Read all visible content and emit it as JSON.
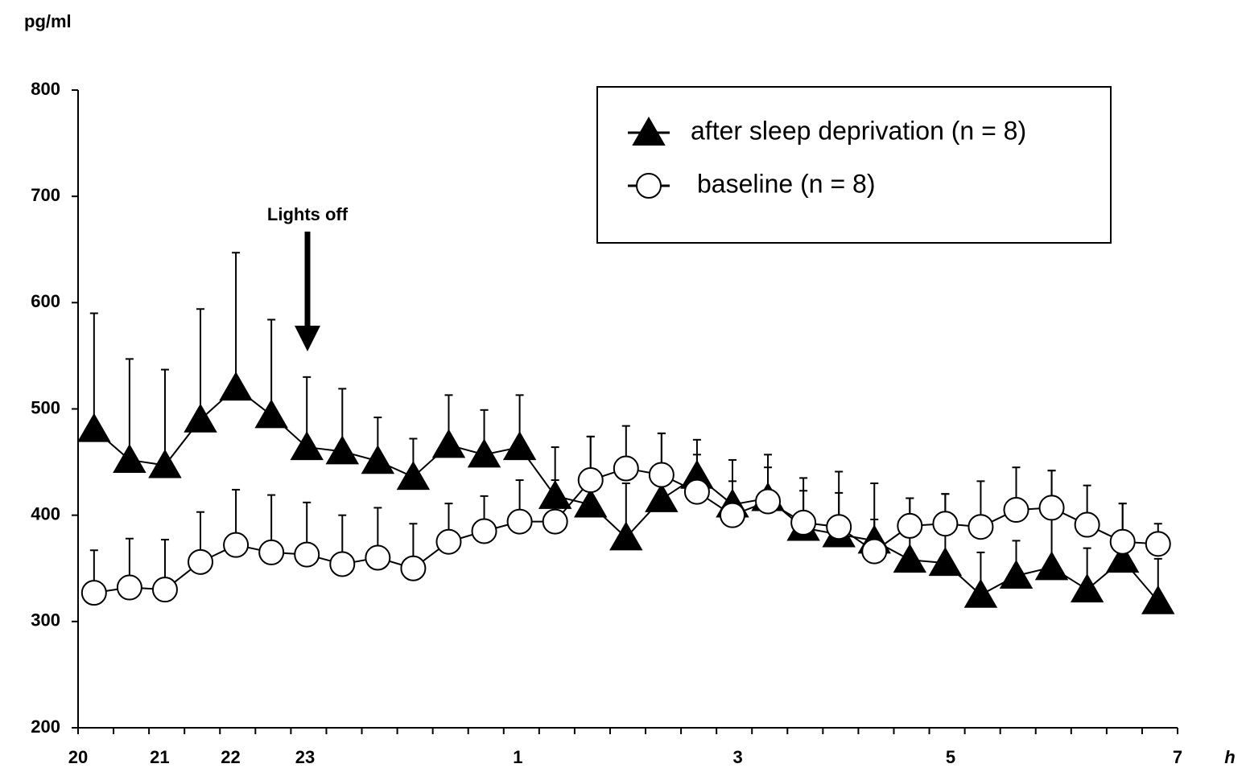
{
  "chart_data": {
    "type": "line",
    "y_axis_label": "pg/ml",
    "x_axis_label": "h",
    "annotation": "Lights off",
    "xlim": [
      0,
      31
    ],
    "xticks": [
      {
        "value": 0,
        "label": "20"
      },
      {
        "value": 2.3,
        "label": "21"
      },
      {
        "value": 4.3,
        "label": "22"
      },
      {
        "value": 6.4,
        "label": "23"
      },
      {
        "value": 12.4,
        "label": "1"
      },
      {
        "value": 18.6,
        "label": "3"
      },
      {
        "value": 24.6,
        "label": "5"
      },
      {
        "value": 31,
        "label": "7"
      }
    ],
    "xminorticks": [
      0,
      1,
      2,
      3,
      4,
      5,
      6,
      7,
      8,
      9,
      10,
      11,
      12,
      13,
      14,
      15,
      16,
      17,
      18,
      19,
      20,
      21,
      22,
      23,
      24,
      25,
      26,
      27,
      28,
      29,
      30,
      31
    ],
    "ylim": [
      200,
      800
    ],
    "yticks": [
      200,
      300,
      400,
      500,
      600,
      700,
      800
    ],
    "x": [
      0.45,
      1.45,
      2.45,
      3.45,
      4.45,
      5.45,
      6.45,
      7.45,
      8.45,
      9.45,
      10.45,
      11.45,
      12.45,
      13.45,
      14.45,
      15.45,
      16.45,
      17.45,
      18.45,
      19.45,
      20.45,
      21.45,
      22.45,
      23.45,
      24.45,
      25.45,
      26.45,
      27.45,
      28.45,
      29.45,
      30.45
    ],
    "series": [
      {
        "name": "after sleep deprivation (n = 8)",
        "marker": "triangle",
        "color": "#000000",
        "fill": "#000000",
        "values": [
          481,
          452,
          447,
          490,
          520,
          494,
          464,
          460,
          451,
          436,
          466,
          457,
          464,
          418,
          410,
          379,
          415,
          437,
          410,
          416,
          388,
          382,
          376,
          358,
          355,
          325,
          343,
          351,
          330,
          358,
          319
        ],
        "errors": [
          109,
          95,
          90,
          104,
          127,
          90,
          66,
          59,
          41,
          36,
          47,
          42,
          49,
          46,
          64,
          51,
          62,
          34,
          42,
          41,
          47,
          59,
          54,
          58,
          65,
          40,
          33,
          91,
          39,
          53,
          40
        ]
      },
      {
        "name": "baseline (n = 8)",
        "marker": "circle",
        "color": "#000000",
        "fill": "#ffffff",
        "values": [
          327,
          332,
          330,
          356,
          372,
          365,
          363,
          354,
          360,
          350,
          375,
          385,
          394,
          394,
          433,
          444,
          438,
          422,
          400,
          413,
          393,
          389,
          366,
          390,
          392,
          389,
          405,
          407,
          391,
          375,
          373
        ],
        "errors": [
          40,
          46,
          47,
          47,
          52,
          54,
          49,
          46,
          47,
          42,
          36,
          33,
          39,
          39,
          41,
          40,
          39,
          35,
          32,
          32,
          30,
          32,
          30,
          26,
          28,
          43,
          40,
          35,
          37,
          36,
          19
        ]
      }
    ]
  }
}
